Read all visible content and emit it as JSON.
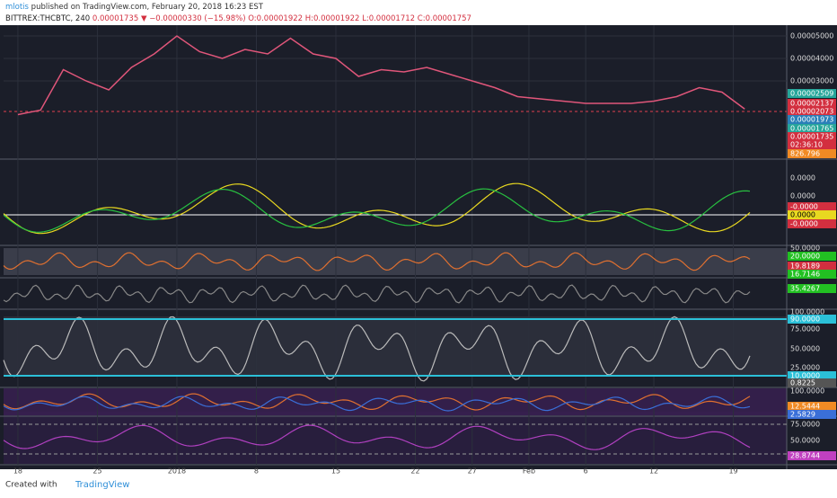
{
  "header": {
    "author": "mlotis",
    "published": "published on TradingView.com, February 20, 2018 16:23 EST",
    "symbol": "BITTREX:THCBTC, 240",
    "last": "0.00001735",
    "arrow": "▼",
    "change": "−0.00000330 (−15.98%)",
    "ohlc": [
      "O:0.00001922",
      "H:0.00001922",
      "L:0.00001712",
      "C:0.00001757"
    ]
  },
  "chart_data": {
    "type": "line",
    "color": "#e0567a",
    "x": [
      0,
      2,
      4,
      6,
      8,
      10,
      12,
      14,
      16,
      18,
      20,
      22,
      24,
      26,
      28,
      30,
      32,
      34,
      36,
      38,
      40,
      42,
      44,
      46,
      48,
      50,
      52,
      54,
      56,
      58,
      60,
      62,
      64
    ],
    "values": [
      1.5e-05,
      1.7e-05,
      3.5e-05,
      3e-05,
      2.6e-05,
      3.6e-05,
      4.2e-05,
      5e-05,
      4.3e-05,
      4e-05,
      4.4e-05,
      4.2e-05,
      4.9e-05,
      4.2e-05,
      4e-05,
      3.2e-05,
      3.5e-05,
      3.4e-05,
      3.6e-05,
      3.3e-05,
      3e-05,
      2.7e-05,
      2.3e-05,
      2.2e-05,
      2.1e-05,
      2e-05,
      2e-05,
      2e-05,
      2.1e-05,
      2.3e-05,
      2.7e-05,
      2.5e-05,
      1.75e-05
    ],
    "xlim": [
      -1.26,
      67.7
    ],
    "xticks": [
      {
        "value": 0,
        "label": "18"
      },
      {
        "value": 7,
        "label": "25"
      },
      {
        "value": 14,
        "label": "2018"
      },
      {
        "value": 21,
        "label": "8"
      },
      {
        "value": 28,
        "label": "15"
      },
      {
        "value": 35,
        "label": "22"
      },
      {
        "value": 40,
        "label": "27"
      },
      {
        "value": 45,
        "label": "Feb"
      },
      {
        "value": 50,
        "label": "6"
      },
      {
        "value": 56,
        "label": "12"
      },
      {
        "value": 63,
        "label": "19"
      }
    ],
    "ylim": [
      -4.4e-06,
      5.4e-05
    ],
    "yticks": [
      {
        "value": 5e-05,
        "label": "0.00005000"
      },
      {
        "value": 4e-05,
        "label": "0.00004000"
      },
      {
        "value": 3e-05,
        "label": "0.00003000"
      }
    ],
    "grid": true,
    "price_tags": [
      "0.00002509",
      "0.00002137",
      "0.00002073",
      "0.00001973",
      "0.00001765",
      "0.00001735",
      "02:36:10",
      "826.796"
    ]
  },
  "indicator_labels": [
    [
      "0.0000",
      "0.0000",
      "-0.0000",
      "0.0000",
      "-0.0000"
    ],
    [
      "50.0000",
      "20.0000",
      "19.8189",
      "16.7146"
    ],
    [
      "35.4267"
    ],
    [
      "100.0000",
      "90.0000",
      "75.0000",
      "50.0000",
      "25.0000",
      "10.0000",
      "0.8225"
    ],
    [
      "100.0000",
      "12.5444",
      "2.5829"
    ],
    [
      "75.0000",
      "50.0000",
      "28.8744"
    ]
  ],
  "footer": {
    "created": "Created with",
    "brand": "TradingView"
  }
}
